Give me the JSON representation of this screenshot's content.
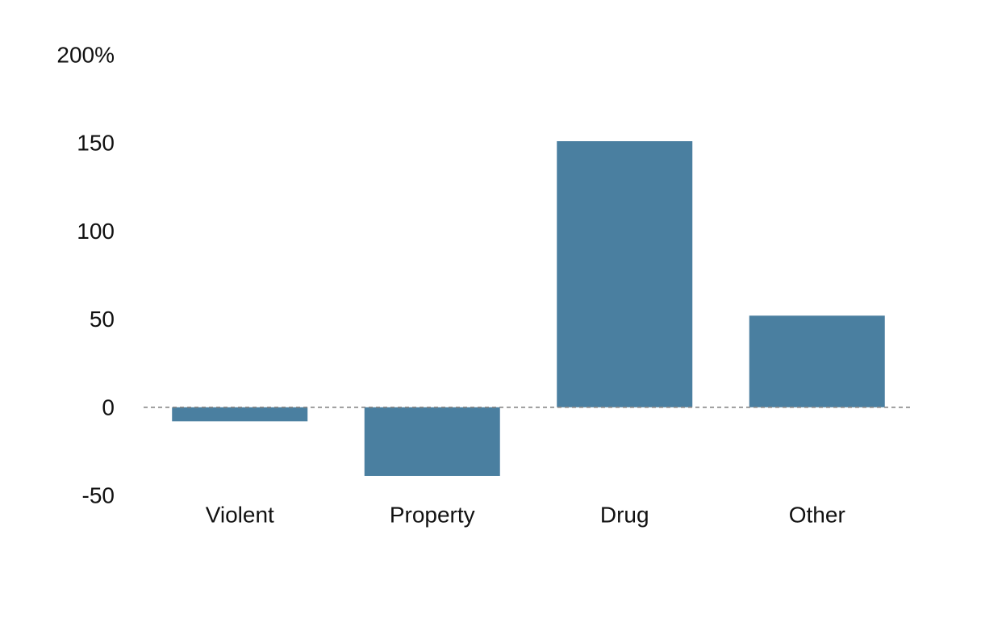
{
  "chart_data": {
    "type": "bar",
    "categories": [
      "Violent",
      "Property",
      "Drug",
      "Other"
    ],
    "values": [
      -8,
      -39,
      151,
      52
    ],
    "y_ticks": [
      "-50",
      "0",
      "50",
      "100",
      "150",
      "200%"
    ],
    "ylim": [
      -50,
      200
    ],
    "title": "",
    "xlabel": "",
    "ylabel": "",
    "grid": false,
    "zero_line": "dashed",
    "bar_color": "#4a7fa0",
    "zero_line_color": "#888888"
  }
}
